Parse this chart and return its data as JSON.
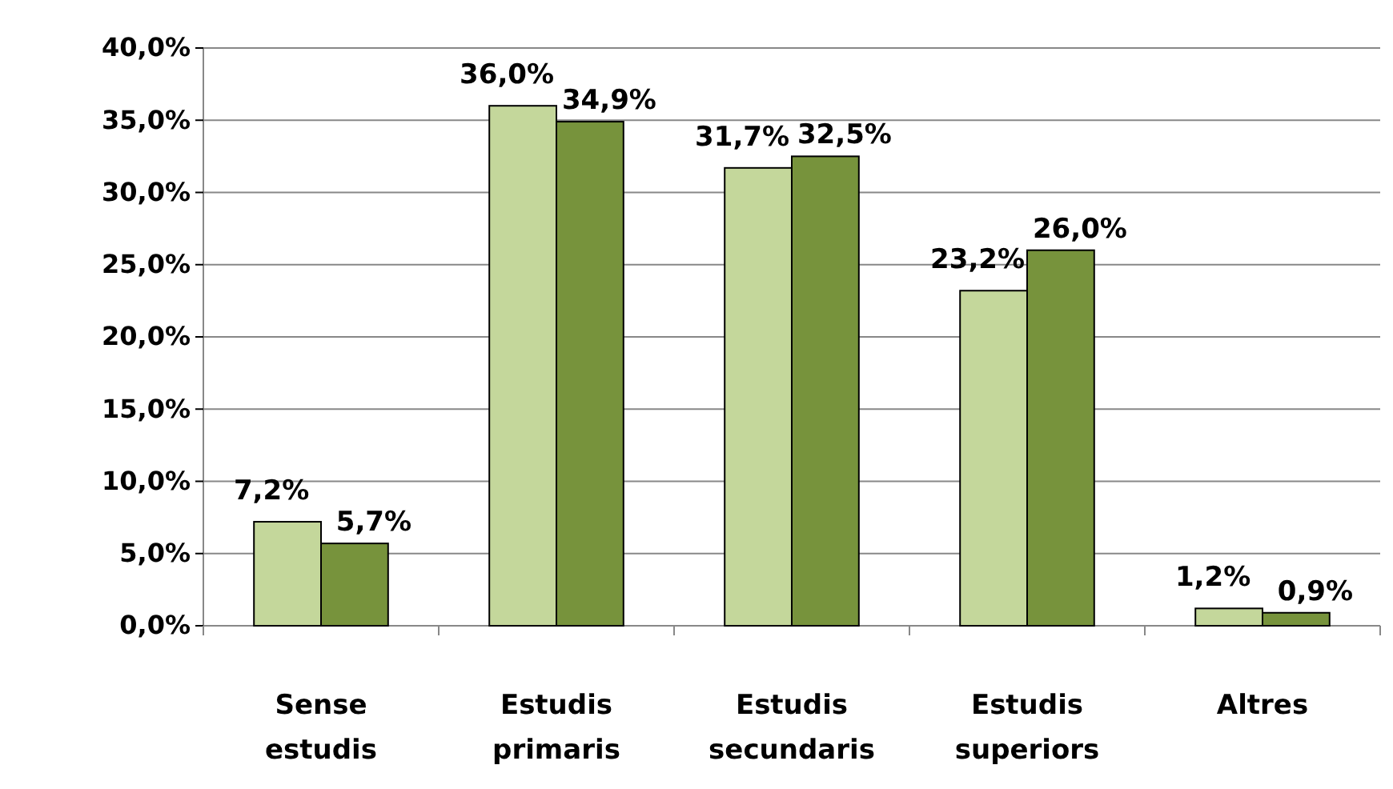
{
  "chart_data": {
    "type": "bar",
    "categories": [
      "Sense estudis",
      "Estudis primaris",
      "Estudis secundaris",
      "Estudis superiors",
      "Altres"
    ],
    "series": [
      {
        "color": "#c4d79b",
        "values": [
          7.2,
          36.0,
          31.7,
          23.2,
          1.2
        ],
        "value_labels": [
          "7,2%",
          "36,0%",
          "31,7%",
          "23,2%",
          "1,2%"
        ]
      },
      {
        "color": "#77933c",
        "values": [
          5.7,
          34.9,
          32.5,
          26.0,
          0.9
        ],
        "value_labels": [
          "5,7%",
          "34,9%",
          "32,5%",
          "26,0%",
          "0,9%"
        ]
      }
    ],
    "ylim": [
      0,
      40
    ],
    "yticks": [
      {
        "value": 0,
        "label": "0,0%"
      },
      {
        "value": 5,
        "label": "5,0%"
      },
      {
        "value": 10,
        "label": "10,0%"
      },
      {
        "value": 15,
        "label": "15,0%"
      },
      {
        "value": 20,
        "label": "20,0%"
      },
      {
        "value": 25,
        "label": "25,0%"
      },
      {
        "value": 30,
        "label": "30,0%"
      },
      {
        "value": 35,
        "label": "35,0%"
      },
      {
        "value": 40,
        "label": "40,0%"
      }
    ],
    "grid": "y"
  }
}
